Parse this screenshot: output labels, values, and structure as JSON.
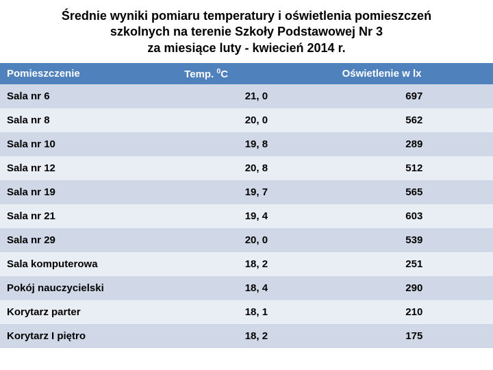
{
  "title_line1": "Średnie wyniki pomiaru temperatury i oświetlenia pomieszczeń",
  "title_line2": "szkolnych na terenie Szkoły Podstawowej Nr 3",
  "title_line3": "za miesiące luty - kwiecień 2014 r.",
  "table": {
    "header_bg": "#4f81bd",
    "header_fg": "#ffffff",
    "row_alt_colors": [
      "#d0d8e8",
      "#e9edf4"
    ],
    "columns": [
      {
        "key": "room",
        "label": "Pomieszczenie",
        "align": "left"
      },
      {
        "key": "temp",
        "label_prefix": "Temp. ",
        "label_sup": "0",
        "label_suffix": "C",
        "align_header": "left",
        "align_cell": "center"
      },
      {
        "key": "light",
        "label": "Oświetlenie w lx",
        "align_header": "left",
        "align_cell": "center"
      }
    ],
    "rows": [
      {
        "room": "Sala nr 6",
        "temp": "21, 0",
        "light": "697"
      },
      {
        "room": "Sala nr 8",
        "temp": "20, 0",
        "light": "562"
      },
      {
        "room": "Sala nr 10",
        "temp": "19, 8",
        "light": "289"
      },
      {
        "room": "Sala nr 12",
        "temp": "20, 8",
        "light": "512"
      },
      {
        "room": "Sala nr 19",
        "temp": "19, 7",
        "light": "565"
      },
      {
        "room": "Sala nr 21",
        "temp": "19, 4",
        "light": "603"
      },
      {
        "room": "Sala nr 29",
        "temp": "20, 0",
        "light": "539"
      },
      {
        "room": "Sala komputerowa",
        "temp": "18, 2",
        "light": "251"
      },
      {
        "room": "Pokój nauczycielski",
        "temp": "18, 4",
        "light": "290"
      },
      {
        "room": "Korytarz parter",
        "temp": "18, 1",
        "light": "210"
      },
      {
        "room": "Korytarz I piętro",
        "temp": "18, 2",
        "light": "175"
      }
    ]
  }
}
